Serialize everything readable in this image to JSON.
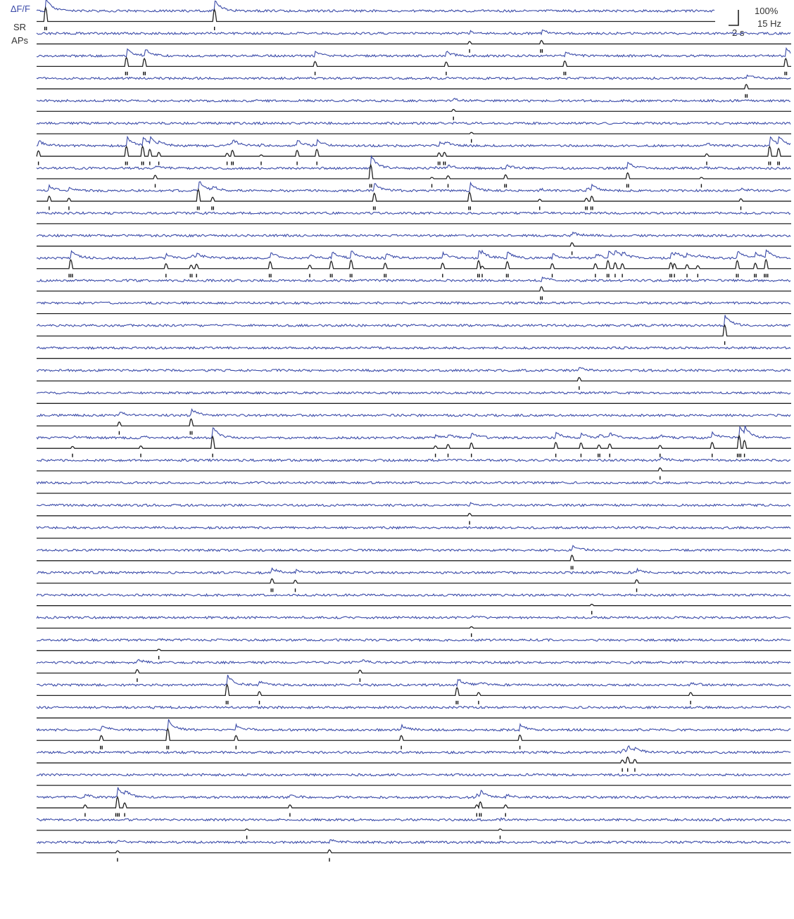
{
  "labels": {
    "dff": "ΔF/F",
    "sr": "SR",
    "aps": "APs"
  },
  "scale_bar": {
    "y_top": "100%",
    "y_bottom": "15 Hz",
    "x": "2 s"
  },
  "colors": {
    "dff_trace": "#3a4aa8",
    "sr_trace": "#222222",
    "ap_tick": "#111111",
    "label_dff": "#3a4aa8",
    "label_other": "#333333"
  },
  "chart_data": {
    "type": "line",
    "title": "",
    "xlabel": "",
    "ylabel": "",
    "grid": false,
    "legend": "left labels: ΔF/F, SR, APs",
    "x_range": [
      0,
      42
    ],
    "dff_unit": "%",
    "sr_unit": "Hz",
    "neurons": [
      {
        "events": [
          [
            0.5,
            1.4,
            2
          ],
          [
            9.9,
            1.2,
            1
          ]
        ]
      },
      {
        "events": [
          [
            24.1,
            0.25,
            1
          ],
          [
            28.1,
            0.35,
            2
          ]
        ]
      },
      {
        "events": [
          [
            5.0,
            0.9,
            2
          ],
          [
            6.0,
            0.8,
            2
          ],
          [
            15.5,
            0.5,
            1
          ],
          [
            22.8,
            0.45,
            1
          ],
          [
            29.4,
            0.55,
            2
          ],
          [
            41.7,
            0.8,
            2
          ]
        ]
      },
      {
        "events": [
          [
            39.5,
            0.45,
            2
          ]
        ]
      },
      {
        "events": [
          [
            23.2,
            0.2,
            1
          ]
        ]
      },
      {
        "events": [
          [
            24.2,
            0.08,
            1
          ]
        ]
      },
      {
        "events": [
          [
            0.1,
            0.55,
            1
          ],
          [
            5.0,
            1.0,
            2
          ],
          [
            5.9,
            1.0,
            2
          ],
          [
            6.3,
            0.7,
            1
          ],
          [
            6.8,
            0.4,
            1
          ],
          [
            10.6,
            0.3,
            1
          ],
          [
            10.9,
            0.6,
            2
          ],
          [
            12.5,
            0.08,
            1
          ],
          [
            14.5,
            0.6,
            1
          ],
          [
            15.6,
            0.7,
            1
          ],
          [
            22.4,
            0.35,
            2
          ],
          [
            22.7,
            0.4,
            2
          ],
          [
            37.3,
            0.25,
            1
          ],
          [
            40.8,
            1.0,
            2
          ],
          [
            41.3,
            0.8,
            2
          ]
        ]
      },
      {
        "events": [
          [
            6.6,
            0.35,
            1
          ],
          [
            18.6,
            1.4,
            2
          ],
          [
            22.0,
            0.1,
            1
          ],
          [
            22.9,
            0.3,
            1
          ],
          [
            26.1,
            0.4,
            2
          ],
          [
            32.9,
            0.6,
            2
          ],
          [
            37.0,
            0.08,
            1
          ]
        ]
      },
      {
        "events": [
          [
            0.7,
            0.5,
            1
          ],
          [
            1.8,
            0.3,
            1
          ],
          [
            9.0,
            1.2,
            2
          ],
          [
            9.8,
            0.4,
            2
          ],
          [
            18.8,
            0.8,
            2
          ],
          [
            24.1,
            0.9,
            2
          ],
          [
            28.0,
            0.2,
            1
          ],
          [
            30.6,
            0.3,
            2
          ],
          [
            30.9,
            0.5,
            2
          ],
          [
            39.2,
            0.25,
            1
          ]
        ]
      },
      {
        "events": []
      },
      {
        "events": [
          [
            29.8,
            0.35,
            1
          ]
        ]
      },
      {
        "events": [
          [
            1.9,
            0.9,
            3
          ],
          [
            7.2,
            0.5,
            1
          ],
          [
            8.6,
            0.35,
            2
          ],
          [
            8.9,
            0.45,
            1
          ],
          [
            13.0,
            0.7,
            2
          ],
          [
            15.2,
            0.35,
            1
          ],
          [
            16.4,
            0.75,
            2
          ],
          [
            17.5,
            0.85,
            2
          ],
          [
            19.4,
            0.55,
            2
          ],
          [
            22.6,
            0.55,
            1
          ],
          [
            24.6,
            0.8,
            2
          ],
          [
            24.8,
            0.25,
            1
          ],
          [
            26.2,
            0.7,
            2
          ],
          [
            28.7,
            0.5,
            1
          ],
          [
            31.1,
            0.5,
            1
          ],
          [
            31.8,
            0.8,
            2
          ],
          [
            32.2,
            0.6,
            1
          ],
          [
            32.6,
            0.5,
            1
          ],
          [
            35.3,
            0.6,
            2
          ],
          [
            35.5,
            0.5,
            1
          ],
          [
            36.2,
            0.4,
            1
          ],
          [
            36.8,
            0.3,
            1
          ],
          [
            39.0,
            0.8,
            2
          ],
          [
            40.0,
            0.55,
            2
          ],
          [
            40.6,
            0.9,
            3
          ]
        ]
      },
      {
        "events": [
          [
            28.1,
            0.45,
            2
          ]
        ]
      },
      {
        "events": []
      },
      {
        "events": [
          [
            38.3,
            1.1,
            1
          ]
        ]
      },
      {
        "events": []
      },
      {
        "events": [
          [
            30.2,
            0.35,
            1
          ]
        ]
      },
      {
        "events": []
      },
      {
        "events": [
          [
            4.6,
            0.4,
            1
          ],
          [
            8.6,
            0.7,
            2
          ]
        ]
      },
      {
        "events": [
          [
            2.0,
            0.2,
            1
          ],
          [
            5.8,
            0.25,
            1
          ],
          [
            9.8,
            1.2,
            1
          ],
          [
            22.2,
            0.25,
            1
          ],
          [
            22.9,
            0.4,
            1
          ],
          [
            24.2,
            0.55,
            1
          ],
          [
            28.9,
            0.6,
            1
          ],
          [
            30.3,
            0.55,
            1
          ],
          [
            31.3,
            0.35,
            2
          ],
          [
            31.9,
            0.45,
            1
          ],
          [
            34.7,
            0.3,
            1
          ],
          [
            37.6,
            0.6,
            1
          ],
          [
            39.1,
            1.3,
            3
          ],
          [
            39.4,
            0.8,
            1
          ]
        ]
      },
      {
        "events": [
          [
            34.7,
            0.3,
            1
          ]
        ]
      },
      {
        "events": []
      },
      {
        "events": [
          [
            24.1,
            0.25,
            1
          ]
        ]
      },
      {
        "events": []
      },
      {
        "events": [
          [
            29.8,
            0.55,
            2
          ]
        ]
      },
      {
        "events": [
          [
            13.1,
            0.45,
            2
          ],
          [
            14.4,
            0.3,
            1
          ],
          [
            33.4,
            0.35,
            1
          ]
        ]
      },
      {
        "events": [
          [
            30.9,
            0.1,
            1
          ]
        ]
      },
      {
        "events": [
          [
            24.2,
            0.1,
            1
          ]
        ]
      },
      {
        "events": [
          [
            6.8,
            0.08,
            1
          ]
        ]
      },
      {
        "events": [
          [
            5.6,
            0.35,
            1
          ],
          [
            18.0,
            0.3,
            1
          ]
        ]
      },
      {
        "events": [
          [
            10.6,
            1.1,
            2
          ],
          [
            12.4,
            0.4,
            1
          ],
          [
            23.4,
            0.8,
            2
          ],
          [
            24.6,
            0.3,
            1
          ],
          [
            36.4,
            0.3,
            1
          ]
        ]
      },
      {
        "events": []
      },
      {
        "events": [
          [
            3.6,
            0.5,
            2
          ],
          [
            7.3,
            1.2,
            2
          ],
          [
            11.1,
            0.5,
            1
          ],
          [
            20.3,
            0.5,
            1
          ],
          [
            26.9,
            0.55,
            1
          ]
        ]
      },
      {
        "events": [
          [
            32.6,
            0.3,
            1
          ],
          [
            32.9,
            0.6,
            1
          ],
          [
            33.3,
            0.35,
            1
          ]
        ]
      },
      {
        "events": []
      },
      {
        "events": [
          [
            2.7,
            0.3,
            1
          ],
          [
            4.5,
            1.1,
            3
          ],
          [
            4.9,
            0.5,
            1
          ],
          [
            14.1,
            0.3,
            1
          ],
          [
            24.5,
            0.3,
            1
          ],
          [
            24.7,
            0.6,
            2
          ],
          [
            26.1,
            0.3,
            1
          ]
        ]
      },
      {
        "events": [
          [
            11.7,
            0.08,
            1
          ],
          [
            25.8,
            0.1,
            1
          ]
        ]
      },
      {
        "events": [
          [
            4.5,
            0.2,
            1
          ],
          [
            16.3,
            0.3,
            1
          ]
        ]
      }
    ]
  }
}
